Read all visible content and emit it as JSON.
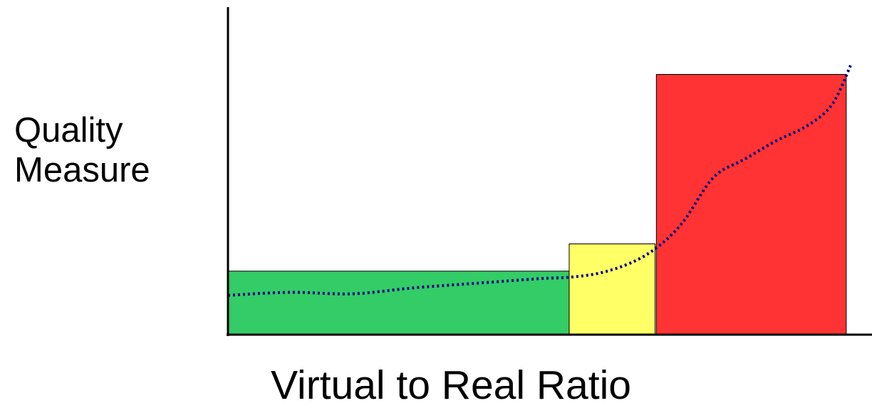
{
  "chart_data": {
    "type": "bar",
    "xlabel": "Virtual to Real Ratio",
    "ylabel": [
      "Quality",
      "Measure"
    ],
    "bars": [
      {
        "x0": 0,
        "x1": 0.548,
        "value": 0.21,
        "color": "#33cc66"
      },
      {
        "x0": 0.548,
        "x1": 0.686,
        "value": 0.3,
        "color": "#ffff66"
      },
      {
        "x0": 0.688,
        "x1": 0.993,
        "value": 0.86,
        "color": "#ff3333"
      }
    ],
    "trend": {
      "style": "dotted",
      "color": "#000080",
      "x": [
        0,
        0.1,
        0.2,
        0.3,
        0.4,
        0.5,
        0.55,
        0.6,
        0.65,
        0.69,
        0.73,
        0.78,
        0.83,
        0.88,
        0.93,
        0.97,
        1.0
      ],
      "y": [
        0.13,
        0.14,
        0.135,
        0.155,
        0.17,
        0.185,
        0.19,
        0.205,
        0.24,
        0.29,
        0.37,
        0.52,
        0.58,
        0.64,
        0.69,
        0.76,
        0.89
      ]
    },
    "xlim": [
      0,
      1
    ],
    "ylim": [
      0,
      1
    ],
    "grid": false
  }
}
